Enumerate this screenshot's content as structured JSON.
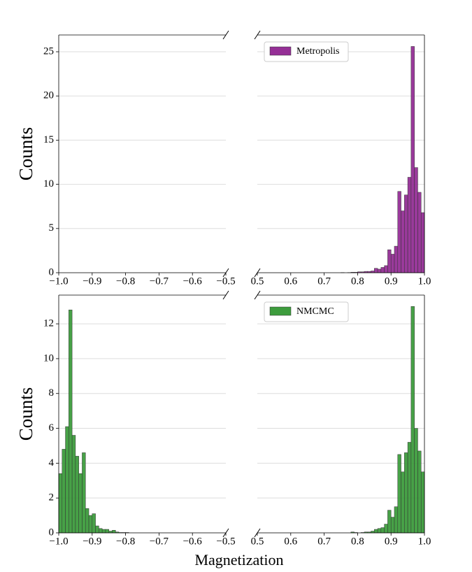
{
  "xlabel": "Magnetization",
  "chart_data": [
    {
      "type": "histogram",
      "ylabel": "Counts",
      "xlim": [
        -1.0,
        -0.5
      ],
      "xticks": [
        {
          "value": -1.0,
          "label": "−1.0"
        },
        {
          "value": -0.9,
          "label": "−0.9"
        },
        {
          "value": -0.8,
          "label": "−0.8"
        },
        {
          "value": -0.7,
          "label": "−0.7"
        },
        {
          "value": -0.6,
          "label": "−0.6"
        },
        {
          "value": -0.5,
          "label": "−0.5"
        }
      ],
      "ylim": [
        0,
        26.9
      ],
      "yticks": [
        0,
        5,
        10,
        15,
        20,
        25
      ],
      "grid": true
    },
    {
      "type": "histogram",
      "legend": "upper left",
      "xlim": [
        0.5,
        1.0
      ],
      "xticks": [
        {
          "value": 0.5,
          "label": "0.5"
        },
        {
          "value": 0.6,
          "label": "0.6"
        },
        {
          "value": 0.7,
          "label": "0.7"
        },
        {
          "value": 0.8,
          "label": "0.8"
        },
        {
          "value": 0.9,
          "label": "0.9"
        },
        {
          "value": 1.0,
          "label": "1.0"
        }
      ],
      "bins": [
        0.75,
        0.76,
        0.77,
        0.78,
        0.79,
        0.8,
        0.81,
        0.82,
        0.83,
        0.84,
        0.85,
        0.86,
        0.87,
        0.88,
        0.89,
        0.9,
        0.91,
        0.92,
        0.93,
        0.94,
        0.95,
        0.96,
        0.97,
        0.98,
        0.99,
        1.0
      ],
      "series": [
        {
          "name": "Metropolis",
          "color": "#952f96",
          "values": [
            0.02,
            0,
            0.02,
            0.05,
            0.05,
            0.1,
            0.1,
            0.15,
            0.15,
            0.2,
            0.5,
            0.4,
            0.6,
            0.8,
            2.6,
            2.1,
            3.0,
            9.2,
            7.0,
            8.8,
            10.8,
            25.6,
            11.9,
            9.1,
            6.8
          ]
        }
      ]
    },
    {
      "type": "histogram",
      "ylabel": "Counts",
      "xlim": [
        -1.0,
        -0.5
      ],
      "xticks": [
        {
          "value": -1.0,
          "label": "−1.0"
        },
        {
          "value": -0.9,
          "label": "−0.9"
        },
        {
          "value": -0.8,
          "label": "−0.8"
        },
        {
          "value": -0.7,
          "label": "−0.7"
        },
        {
          "value": -0.6,
          "label": "−0.6"
        },
        {
          "value": -0.5,
          "label": "−0.5"
        }
      ],
      "ylim": [
        0,
        13.65
      ],
      "yticks": [
        0,
        2,
        4,
        6,
        8,
        10,
        12
      ],
      "grid": true,
      "bins": [
        -1.0,
        -0.99,
        -0.98,
        -0.97,
        -0.96,
        -0.95,
        -0.94,
        -0.93,
        -0.92,
        -0.91,
        -0.9,
        -0.89,
        -0.88,
        -0.87,
        -0.86,
        -0.85,
        -0.84,
        -0.83,
        -0.82,
        -0.81,
        -0.8,
        -0.79
      ],
      "series": [
        {
          "name": "NMCMC",
          "color": "#3d9c3d",
          "values": [
            3.4,
            4.8,
            6.1,
            12.8,
            5.6,
            4.4,
            3.4,
            4.6,
            1.4,
            1.0,
            1.1,
            0.4,
            0.25,
            0.2,
            0.2,
            0.1,
            0.15,
            0.05,
            0.02,
            0.02,
            0.02
          ]
        }
      ]
    },
    {
      "type": "histogram",
      "legend": "upper left",
      "xlim": [
        0.5,
        1.0
      ],
      "xticks": [
        {
          "value": 0.5,
          "label": "0.5"
        },
        {
          "value": 0.6,
          "label": "0.6"
        },
        {
          "value": 0.7,
          "label": "0.7"
        },
        {
          "value": 0.8,
          "label": "0.8"
        },
        {
          "value": 0.9,
          "label": "0.9"
        },
        {
          "value": 1.0,
          "label": "1.0"
        }
      ],
      "bins": [
        0.78,
        0.79,
        0.8,
        0.81,
        0.82,
        0.83,
        0.84,
        0.85,
        0.86,
        0.87,
        0.88,
        0.89,
        0.9,
        0.91,
        0.92,
        0.93,
        0.94,
        0.95,
        0.96,
        0.97,
        0.98,
        0.99,
        1.0
      ],
      "series": [
        {
          "name": "NMCMC",
          "color": "#3d9c3d",
          "values": [
            0.05,
            0.02,
            0,
            0.02,
            0.05,
            0.05,
            0.1,
            0.2,
            0.25,
            0.3,
            0.5,
            1.3,
            0.9,
            1.5,
            4.5,
            3.5,
            4.6,
            5.2,
            13.0,
            6.0,
            4.7,
            3.5
          ]
        }
      ]
    }
  ]
}
